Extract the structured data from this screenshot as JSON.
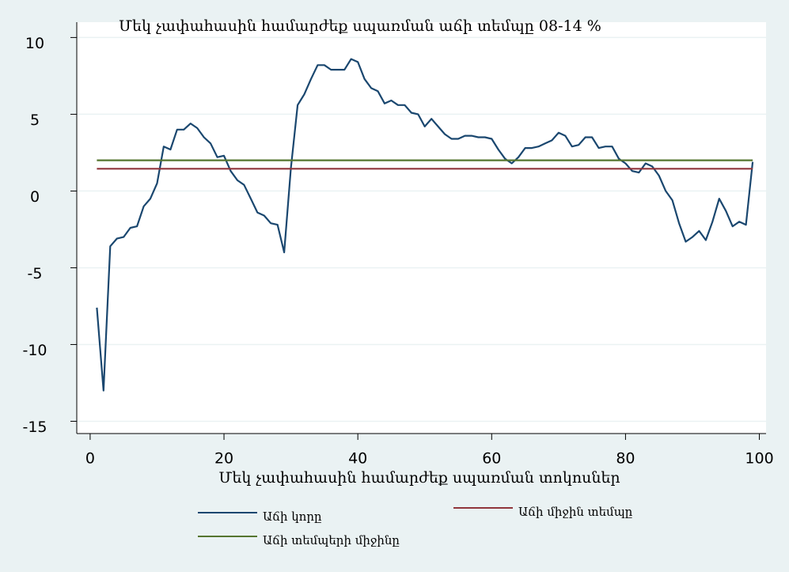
{
  "chart_data": {
    "type": "line",
    "title": "Մեկ չափահասին համարժեք սպառման աճի տեմպը  08-14 %",
    "x_label": "Մեկ չափահասին համարժեք սպառման տոկոսներ",
    "xlim": [
      -2,
      101
    ],
    "xticks": [
      0,
      20,
      40,
      60,
      80,
      100
    ],
    "ylim": [
      -15.8,
      11
    ],
    "yticks": [
      -15,
      -10,
      -5,
      0,
      5,
      10
    ],
    "grid": true,
    "series": [
      {
        "name": "Աճի կորը",
        "color": "#1a476f",
        "x": [
          1,
          2,
          3,
          4,
          5,
          6,
          7,
          8,
          9,
          10,
          11,
          12,
          13,
          14,
          15,
          16,
          17,
          18,
          19,
          20,
          21,
          22,
          23,
          24,
          25,
          26,
          27,
          28,
          29,
          30,
          31,
          32,
          33,
          34,
          35,
          36,
          37,
          38,
          39,
          40,
          41,
          42,
          43,
          44,
          45,
          46,
          47,
          48,
          49,
          50,
          51,
          52,
          53,
          54,
          55,
          56,
          57,
          58,
          59,
          60,
          61,
          62,
          63,
          64,
          65,
          66,
          67,
          68,
          69,
          70,
          71,
          72,
          73,
          74,
          75,
          76,
          77,
          78,
          79,
          80,
          81,
          82,
          83,
          84,
          85,
          86,
          87,
          88,
          89,
          90,
          91,
          92,
          93,
          94,
          95,
          96,
          97,
          98,
          99
        ],
        "values": [
          -7.6,
          -13.0,
          -3.6,
          -3.1,
          -3.0,
          -2.4,
          -2.3,
          -1.0,
          -0.5,
          0.5,
          2.9,
          2.7,
          4.0,
          4.0,
          4.4,
          4.1,
          3.5,
          3.1,
          2.2,
          2.3,
          1.3,
          0.7,
          0.4,
          -0.5,
          -1.4,
          -1.6,
          -2.1,
          -2.2,
          -4.0,
          1.5,
          5.6,
          6.3,
          7.3,
          8.2,
          8.2,
          7.9,
          7.9,
          7.9,
          8.6,
          8.4,
          7.3,
          6.7,
          6.5,
          5.7,
          5.9,
          5.6,
          5.6,
          5.1,
          5.0,
          4.2,
          4.7,
          4.2,
          3.7,
          3.4,
          3.4,
          3.6,
          3.6,
          3.5,
          3.5,
          3.4,
          2.7,
          2.1,
          1.8,
          2.2,
          2.8,
          2.8,
          2.9,
          3.1,
          3.3,
          3.8,
          3.6,
          2.9,
          3.0,
          3.5,
          3.5,
          2.8,
          2.9,
          2.9,
          2.1,
          1.8,
          1.3,
          1.2,
          1.8,
          1.6,
          1.0,
          0.0,
          -0.6,
          -2.1,
          -3.3,
          -3.0,
          -2.6,
          -3.2,
          -2.0,
          -0.5,
          -1.3,
          -2.3,
          -2.0,
          -2.2,
          1.9
        ]
      },
      {
        "name": "Աճի միջին տեմպը",
        "color": "#90353b",
        "x": [
          1,
          99
        ],
        "values": [
          1.45,
          1.45
        ]
      },
      {
        "name": "Աճի տեմպերի միջինը",
        "color": "#55752f",
        "x": [
          1,
          99
        ],
        "values": [
          2.0,
          2.0
        ]
      }
    ]
  }
}
